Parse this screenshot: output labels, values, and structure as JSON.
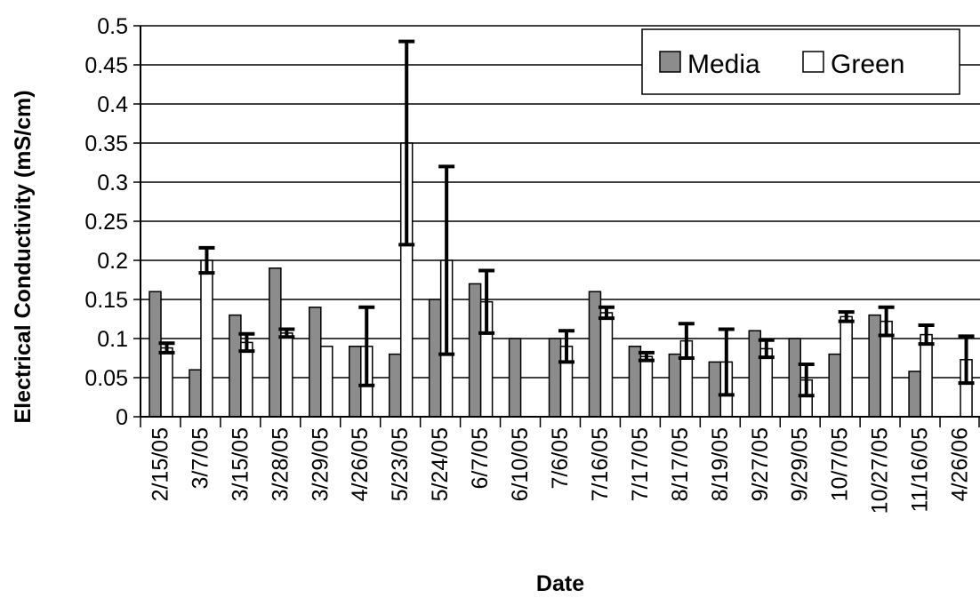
{
  "chart_data": {
    "type": "bar",
    "categories": [
      "2/15/05",
      "3/7/05",
      "3/15/05",
      "3/28/05",
      "3/29/05",
      "4/26/05",
      "5/23/05",
      "5/24/05",
      "6/7/05",
      "6/10/05",
      "7/6/05",
      "7/16/05",
      "7/17/05",
      "8/17/05",
      "8/19/05",
      "9/27/05",
      "9/29/05",
      "10/7/05",
      "10/27/05",
      "11/16/05",
      "4/26/06"
    ],
    "series": [
      {
        "name": "Media",
        "color": "#8c8c8c",
        "values": [
          0.16,
          0.06,
          0.13,
          0.19,
          0.14,
          0.09,
          0.08,
          0.15,
          0.17,
          0.1,
          0.1,
          0.16,
          0.09,
          0.08,
          0.07,
          0.11,
          0.1,
          0.08,
          0.13,
          0.058,
          null
        ],
        "errors": [
          null,
          null,
          null,
          null,
          null,
          null,
          null,
          null,
          null,
          null,
          null,
          null,
          null,
          null,
          null,
          null,
          null,
          null,
          null,
          null,
          null
        ]
      },
      {
        "name": "Green",
        "color": "#ffffff",
        "values": [
          0.088,
          0.2,
          0.095,
          0.107,
          0.09,
          0.09,
          0.35,
          0.2,
          0.147,
          null,
          0.09,
          0.133,
          0.077,
          0.097,
          0.07,
          0.087,
          0.047,
          0.128,
          0.122,
          0.105,
          0.073
        ],
        "errors": [
          0.006,
          0.016,
          0.011,
          0.005,
          null,
          0.05,
          0.13,
          0.12,
          0.04,
          null,
          0.02,
          0.007,
          0.005,
          0.022,
          0.042,
          0.011,
          0.02,
          0.006,
          0.018,
          0.012,
          0.03
        ]
      }
    ],
    "xlabel": "Date",
    "ylabel": "Electrical Conductivity (mS/cm)",
    "ylim": [
      0,
      0.5
    ],
    "yticks": [
      "0",
      "0.05",
      "0.1",
      "0.15",
      "0.2",
      "0.25",
      "0.3",
      "0.35",
      "0.4",
      "0.45",
      "0.5"
    ],
    "grid": true,
    "legend_position": "top-right"
  }
}
